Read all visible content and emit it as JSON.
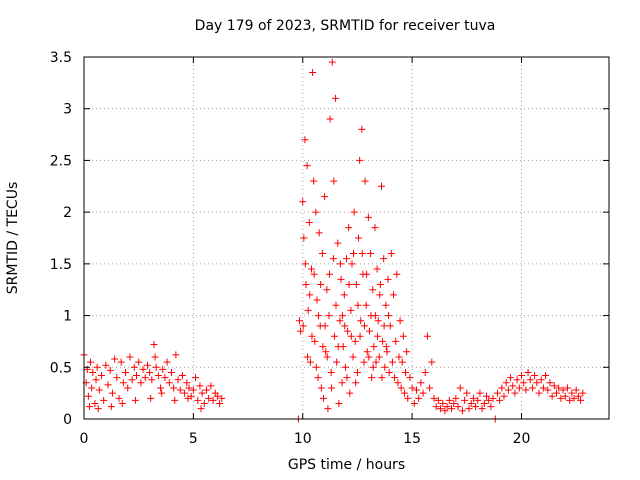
{
  "chart_data": {
    "type": "scatter",
    "title": "Day 179 of 2023, SRMTID for receiver tuva",
    "xlabel": "GPS time / hours",
    "ylabel": "SRMTID / TECUs",
    "xlim": [
      0,
      24
    ],
    "ylim": [
      0,
      3.5
    ],
    "xticks": [
      0,
      5,
      10,
      15,
      20
    ],
    "xtick_labels": [
      "0",
      "5",
      "10",
      "15",
      "20"
    ],
    "yticks": [
      0,
      0.5,
      1,
      1.5,
      2,
      2.5,
      3,
      3.5
    ],
    "ytick_labels": [
      "0",
      "0.5",
      "1",
      "1.5",
      "2",
      "2.5",
      "3",
      "3.5"
    ],
    "grid": true,
    "marker": "plus",
    "color": "#ff0000",
    "series": [
      {
        "name": "SRMTID",
        "points": [
          [
            0.0,
            0.62
          ],
          [
            0.1,
            0.35
          ],
          [
            0.15,
            0.48
          ],
          [
            0.2,
            0.22
          ],
          [
            0.3,
            0.55
          ],
          [
            0.35,
            0.3
          ],
          [
            0.4,
            0.45
          ],
          [
            0.5,
            0.15
          ],
          [
            0.55,
            0.38
          ],
          [
            0.6,
            0.5
          ],
          [
            0.7,
            0.28
          ],
          [
            0.8,
            0.42
          ],
          [
            0.9,
            0.18
          ],
          [
            1.0,
            0.52
          ],
          [
            1.1,
            0.33
          ],
          [
            1.2,
            0.47
          ],
          [
            1.3,
            0.25
          ],
          [
            1.4,
            0.58
          ],
          [
            1.5,
            0.4
          ],
          [
            1.6,
            0.2
          ],
          [
            1.7,
            0.55
          ],
          [
            1.8,
            0.35
          ],
          [
            1.9,
            0.45
          ],
          [
            2.0,
            0.3
          ],
          [
            2.1,
            0.6
          ],
          [
            2.2,
            0.38
          ],
          [
            2.3,
            0.5
          ],
          [
            2.4,
            0.42
          ],
          [
            2.5,
            0.55
          ],
          [
            2.6,
            0.35
          ],
          [
            2.7,
            0.48
          ],
          [
            2.8,
            0.4
          ],
          [
            2.9,
            0.52
          ],
          [
            3.0,
            0.45
          ],
          [
            3.1,
            0.38
          ],
          [
            3.2,
            0.72
          ],
          [
            3.25,
            0.6
          ],
          [
            3.3,
            0.5
          ],
          [
            3.4,
            0.42
          ],
          [
            3.5,
            0.3
          ],
          [
            3.6,
            0.48
          ],
          [
            3.7,
            0.4
          ],
          [
            3.8,
            0.55
          ],
          [
            3.9,
            0.35
          ],
          [
            4.0,
            0.45
          ],
          [
            4.1,
            0.3
          ],
          [
            4.2,
            0.62
          ],
          [
            4.3,
            0.38
          ],
          [
            4.4,
            0.28
          ],
          [
            4.5,
            0.42
          ],
          [
            4.6,
            0.25
          ],
          [
            4.7,
            0.35
          ],
          [
            4.8,
            0.3
          ],
          [
            4.9,
            0.22
          ],
          [
            5.0,
            0.28
          ],
          [
            5.1,
            0.4
          ],
          [
            5.2,
            0.18
          ],
          [
            5.3,
            0.32
          ],
          [
            5.4,
            0.25
          ],
          [
            5.5,
            0.15
          ],
          [
            5.6,
            0.28
          ],
          [
            5.7,
            0.2
          ],
          [
            5.8,
            0.32
          ],
          [
            5.9,
            0.18
          ],
          [
            6.0,
            0.25
          ],
          [
            6.1,
            0.22
          ],
          [
            6.2,
            0.15
          ],
          [
            6.3,
            0.2
          ],
          [
            0.25,
            0.12
          ],
          [
            0.65,
            0.1
          ],
          [
            1.25,
            0.12
          ],
          [
            1.75,
            0.15
          ],
          [
            2.35,
            0.18
          ],
          [
            3.05,
            0.2
          ],
          [
            3.55,
            0.25
          ],
          [
            4.15,
            0.18
          ],
          [
            4.75,
            0.2
          ],
          [
            5.35,
            0.1
          ],
          [
            9.8,
            0.0
          ],
          [
            9.85,
            0.95
          ],
          [
            9.9,
            0.85
          ],
          [
            10.0,
            2.1
          ],
          [
            10.05,
            1.75
          ],
          [
            10.1,
            2.7
          ],
          [
            10.15,
            1.3
          ],
          [
            10.2,
            2.45
          ],
          [
            10.25,
            1.05
          ],
          [
            10.3,
            1.9
          ],
          [
            10.35,
            0.55
          ],
          [
            10.4,
            1.45
          ],
          [
            10.45,
            3.35
          ],
          [
            10.5,
            2.3
          ],
          [
            10.55,
            0.75
          ],
          [
            10.6,
            2.0
          ],
          [
            10.65,
            1.15
          ],
          [
            10.7,
            0.4
          ],
          [
            10.75,
            1.8
          ],
          [
            10.8,
            0.9
          ],
          [
            10.85,
            0.3
          ],
          [
            10.9,
            1.6
          ],
          [
            10.95,
            0.2
          ],
          [
            11.0,
            2.15
          ],
          [
            11.05,
            0.65
          ],
          [
            11.1,
            1.25
          ],
          [
            11.15,
            0.1
          ],
          [
            11.2,
            1.0
          ],
          [
            11.25,
            2.9
          ],
          [
            11.3,
            0.45
          ],
          [
            11.35,
            3.45
          ],
          [
            11.4,
            1.55
          ],
          [
            11.45,
            0.8
          ],
          [
            11.5,
            3.1
          ],
          [
            11.55,
            0.55
          ],
          [
            11.6,
            1.7
          ],
          [
            11.65,
            0.15
          ],
          [
            11.7,
            0.95
          ],
          [
            11.75,
            1.35
          ],
          [
            11.8,
            0.35
          ],
          [
            11.85,
            0.7
          ],
          [
            11.9,
            1.2
          ],
          [
            11.95,
            0.5
          ],
          [
            12.0,
            1.55
          ],
          [
            12.05,
            0.85
          ],
          [
            12.1,
            1.85
          ],
          [
            12.15,
            0.25
          ],
          [
            12.2,
            1.05
          ],
          [
            12.25,
            1.5
          ],
          [
            12.3,
            0.6
          ],
          [
            12.35,
            2.0
          ],
          [
            12.4,
            0.75
          ],
          [
            12.45,
            1.3
          ],
          [
            12.5,
            0.45
          ],
          [
            12.55,
            1.75
          ],
          [
            12.6,
            2.5
          ],
          [
            12.65,
            0.95
          ],
          [
            12.7,
            2.8
          ],
          [
            12.75,
            1.4
          ],
          [
            12.8,
            0.55
          ],
          [
            12.85,
            2.3
          ],
          [
            12.9,
            1.1
          ],
          [
            12.95,
            0.65
          ],
          [
            13.0,
            1.95
          ],
          [
            13.05,
            0.85
          ],
          [
            13.1,
            1.6
          ],
          [
            13.15,
            0.4
          ],
          [
            13.2,
            1.25
          ],
          [
            13.25,
            0.7
          ],
          [
            13.3,
            1.85
          ],
          [
            13.35,
            0.55
          ],
          [
            13.4,
            1.45
          ],
          [
            13.45,
            0.95
          ],
          [
            13.5,
            0.6
          ],
          [
            13.55,
            1.3
          ],
          [
            13.6,
            2.25
          ],
          [
            13.65,
            0.75
          ],
          [
            13.7,
            1.55
          ],
          [
            13.75,
            0.5
          ],
          [
            13.8,
            1.1
          ],
          [
            13.85,
            0.65
          ],
          [
            13.9,
            1.35
          ],
          [
            13.95,
            0.45
          ],
          [
            14.0,
            0.9
          ],
          [
            14.05,
            1.6
          ],
          [
            14.1,
            0.55
          ],
          [
            14.15,
            1.2
          ],
          [
            14.2,
            0.4
          ],
          [
            14.25,
            0.75
          ],
          [
            14.3,
            1.4
          ],
          [
            14.35,
            0.35
          ],
          [
            14.4,
            0.6
          ],
          [
            14.45,
            0.95
          ],
          [
            14.5,
            0.3
          ],
          [
            14.55,
            0.55
          ],
          [
            14.6,
            0.8
          ],
          [
            14.65,
            0.25
          ],
          [
            14.7,
            0.45
          ],
          [
            14.75,
            0.65
          ],
          [
            14.8,
            0.2
          ],
          [
            14.9,
            0.4
          ],
          [
            15.0,
            0.3
          ],
          [
            15.1,
            0.15
          ],
          [
            15.2,
            0.28
          ],
          [
            15.3,
            0.2
          ],
          [
            15.4,
            0.35
          ],
          [
            15.5,
            0.25
          ],
          [
            15.6,
            0.45
          ],
          [
            15.7,
            0.8
          ],
          [
            15.8,
            0.3
          ],
          [
            15.9,
            0.55
          ],
          [
            16.0,
            0.2
          ],
          [
            16.1,
            0.12
          ],
          [
            16.2,
            0.18
          ],
          [
            16.3,
            0.1
          ],
          [
            16.4,
            0.15
          ],
          [
            16.5,
            0.08
          ],
          [
            16.6,
            0.12
          ],
          [
            16.7,
            0.18
          ],
          [
            16.8,
            0.1
          ],
          [
            16.9,
            0.15
          ],
          [
            17.0,
            0.2
          ],
          [
            17.1,
            0.12
          ],
          [
            17.2,
            0.3
          ],
          [
            17.3,
            0.08
          ],
          [
            17.4,
            0.18
          ],
          [
            17.5,
            0.25
          ],
          [
            17.6,
            0.1
          ],
          [
            17.7,
            0.15
          ],
          [
            17.8,
            0.2
          ],
          [
            17.9,
            0.12
          ],
          [
            18.0,
            0.18
          ],
          [
            18.1,
            0.25
          ],
          [
            18.2,
            0.1
          ],
          [
            18.3,
            0.15
          ],
          [
            18.4,
            0.22
          ],
          [
            18.5,
            0.18
          ],
          [
            18.6,
            0.12
          ],
          [
            18.7,
            0.2
          ],
          [
            18.8,
            0.0
          ],
          [
            18.9,
            0.25
          ],
          [
            19.0,
            0.18
          ],
          [
            19.1,
            0.3
          ],
          [
            19.2,
            0.22
          ],
          [
            19.3,
            0.35
          ],
          [
            19.4,
            0.28
          ],
          [
            19.5,
            0.4
          ],
          [
            19.6,
            0.32
          ],
          [
            19.7,
            0.25
          ],
          [
            19.8,
            0.38
          ],
          [
            19.9,
            0.3
          ],
          [
            20.0,
            0.42
          ],
          [
            20.1,
            0.35
          ],
          [
            20.2,
            0.28
          ],
          [
            20.3,
            0.45
          ],
          [
            20.4,
            0.38
          ],
          [
            20.5,
            0.3
          ],
          [
            20.6,
            0.42
          ],
          [
            20.7,
            0.35
          ],
          [
            20.8,
            0.25
          ],
          [
            20.9,
            0.38
          ],
          [
            21.0,
            0.3
          ],
          [
            21.1,
            0.42
          ],
          [
            21.2,
            0.28
          ],
          [
            21.3,
            0.35
          ],
          [
            21.4,
            0.22
          ],
          [
            21.5,
            0.32
          ],
          [
            21.6,
            0.25
          ],
          [
            21.7,
            0.3
          ],
          [
            21.8,
            0.2
          ],
          [
            21.9,
            0.28
          ],
          [
            22.0,
            0.22
          ],
          [
            22.1,
            0.3
          ],
          [
            22.2,
            0.18
          ],
          [
            22.3,
            0.25
          ],
          [
            22.4,
            0.2
          ],
          [
            22.5,
            0.28
          ],
          [
            22.6,
            0.22
          ],
          [
            22.7,
            0.18
          ],
          [
            22.8,
            0.25
          ],
          [
            10.02,
            0.9
          ],
          [
            10.12,
            1.5
          ],
          [
            10.22,
            0.6
          ],
          [
            10.32,
            1.2
          ],
          [
            10.42,
            0.8
          ],
          [
            10.52,
            1.4
          ],
          [
            10.62,
            0.5
          ],
          [
            10.72,
            1.0
          ],
          [
            10.82,
            1.3
          ],
          [
            10.92,
            0.7
          ],
          [
            11.02,
            0.9
          ],
          [
            11.12,
            0.6
          ],
          [
            11.22,
            1.4
          ],
          [
            11.32,
            0.3
          ],
          [
            11.42,
            2.3
          ],
          [
            11.52,
            1.1
          ],
          [
            11.62,
            0.7
          ],
          [
            11.72,
            1.5
          ],
          [
            11.82,
            1.0
          ],
          [
            11.92,
            0.9
          ],
          [
            12.02,
            0.4
          ],
          [
            12.12,
            1.3
          ],
          [
            12.22,
            0.8
          ],
          [
            12.32,
            1.6
          ],
          [
            12.42,
            0.35
          ],
          [
            12.52,
            1.1
          ],
          [
            12.62,
            0.8
          ],
          [
            12.72,
            1.6
          ],
          [
            12.82,
            0.9
          ],
          [
            12.92,
            1.4
          ],
          [
            13.02,
            0.6
          ],
          [
            13.12,
            1.0
          ],
          [
            13.22,
            0.5
          ],
          [
            13.32,
            1.0
          ],
          [
            13.42,
            0.8
          ],
          [
            13.52,
            1.2
          ],
          [
            13.62,
            0.4
          ],
          [
            13.72,
            0.9
          ],
          [
            13.82,
            0.7
          ],
          [
            13.92,
            1.0
          ]
        ]
      }
    ]
  }
}
